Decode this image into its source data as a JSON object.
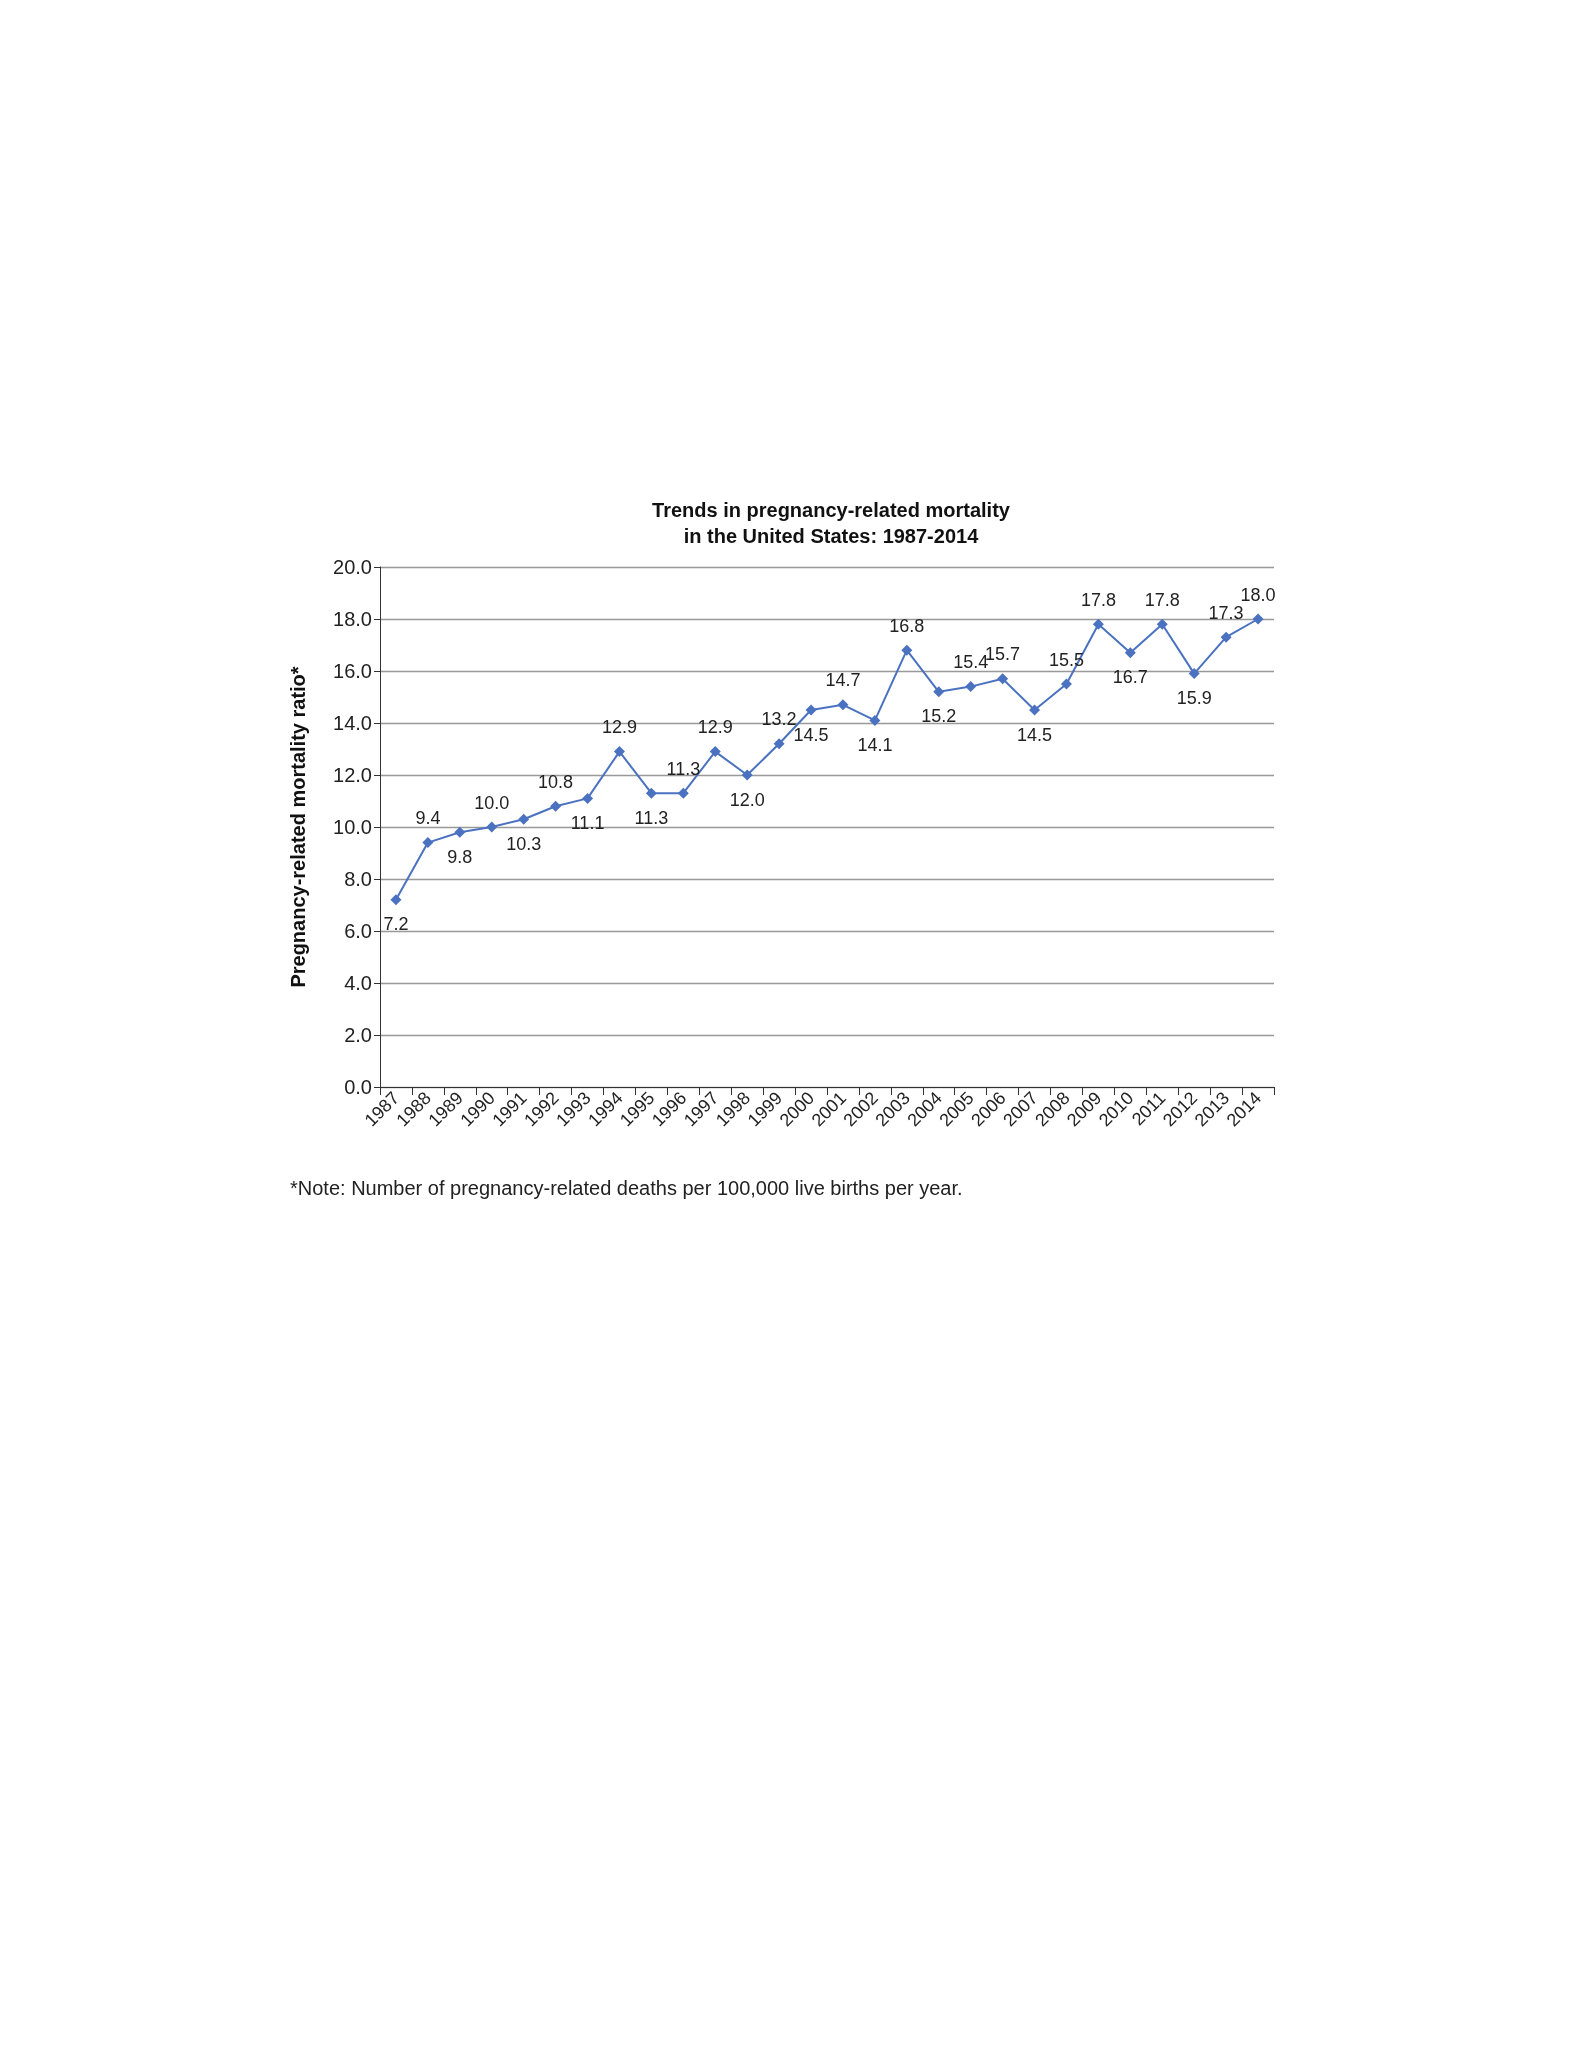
{
  "chart_data": {
    "type": "line",
    "title": "Trends in pregnancy-related mortality\nin the United States: 1987-2014",
    "ylabel": "Pregnancy-related mortality ratio*",
    "categories": [
      "1987",
      "1988",
      "1989",
      "1990",
      "1991",
      "1992",
      "1993",
      "1994",
      "1995",
      "1996",
      "1997",
      "1998",
      "1999",
      "2000",
      "2001",
      "2002",
      "2003",
      "2004",
      "2005",
      "2006",
      "2007",
      "2008",
      "2009",
      "2010",
      "2011",
      "2012",
      "2013",
      "2014"
    ],
    "series": [
      {
        "color": "#4a72c0",
        "values": [
          7.2,
          9.4,
          9.8,
          10.0,
          10.3,
          10.8,
          11.1,
          12.9,
          11.3,
          11.3,
          12.9,
          12.0,
          13.2,
          14.5,
          14.7,
          14.1,
          16.8,
          15.2,
          15.4,
          15.7,
          14.5,
          15.5,
          17.8,
          16.7,
          17.8,
          15.9,
          17.3,
          18.0
        ],
        "value_labels": [
          "7.2",
          "9.4",
          "9.8",
          "10.0",
          "10.3",
          "10.8",
          "11.1",
          "12.9",
          "11.3",
          "11.3",
          "12.9",
          "12.0",
          "13.2",
          "14.5",
          "14.7",
          "14.1",
          "16.8",
          "15.2",
          "15.4",
          "15.7",
          "14.5",
          "15.5",
          "17.8",
          "16.7",
          "17.8",
          "15.9",
          "17.3",
          "18.0"
        ]
      }
    ],
    "ylim": [
      0,
      20
    ],
    "yticks": [
      {
        "value": 0,
        "label": "0.0"
      },
      {
        "value": 2,
        "label": "2.0"
      },
      {
        "value": 4,
        "label": "4.0"
      },
      {
        "value": 6,
        "label": "6.0"
      },
      {
        "value": 8,
        "label": "8.0"
      },
      {
        "value": 10,
        "label": "10.0"
      },
      {
        "value": 12,
        "label": "12.0"
      },
      {
        "value": 14,
        "label": "14.0"
      },
      {
        "value": 16,
        "label": "16.0"
      },
      {
        "value": 18,
        "label": "18.0"
      },
      {
        "value": 20,
        "label": "20.0"
      }
    ],
    "grid": "y",
    "marker": "diamond",
    "line_style": "solid",
    "annotations": [
      "*Note: Number of pregnancy-related deaths per 100,000 live births per year."
    ]
  }
}
